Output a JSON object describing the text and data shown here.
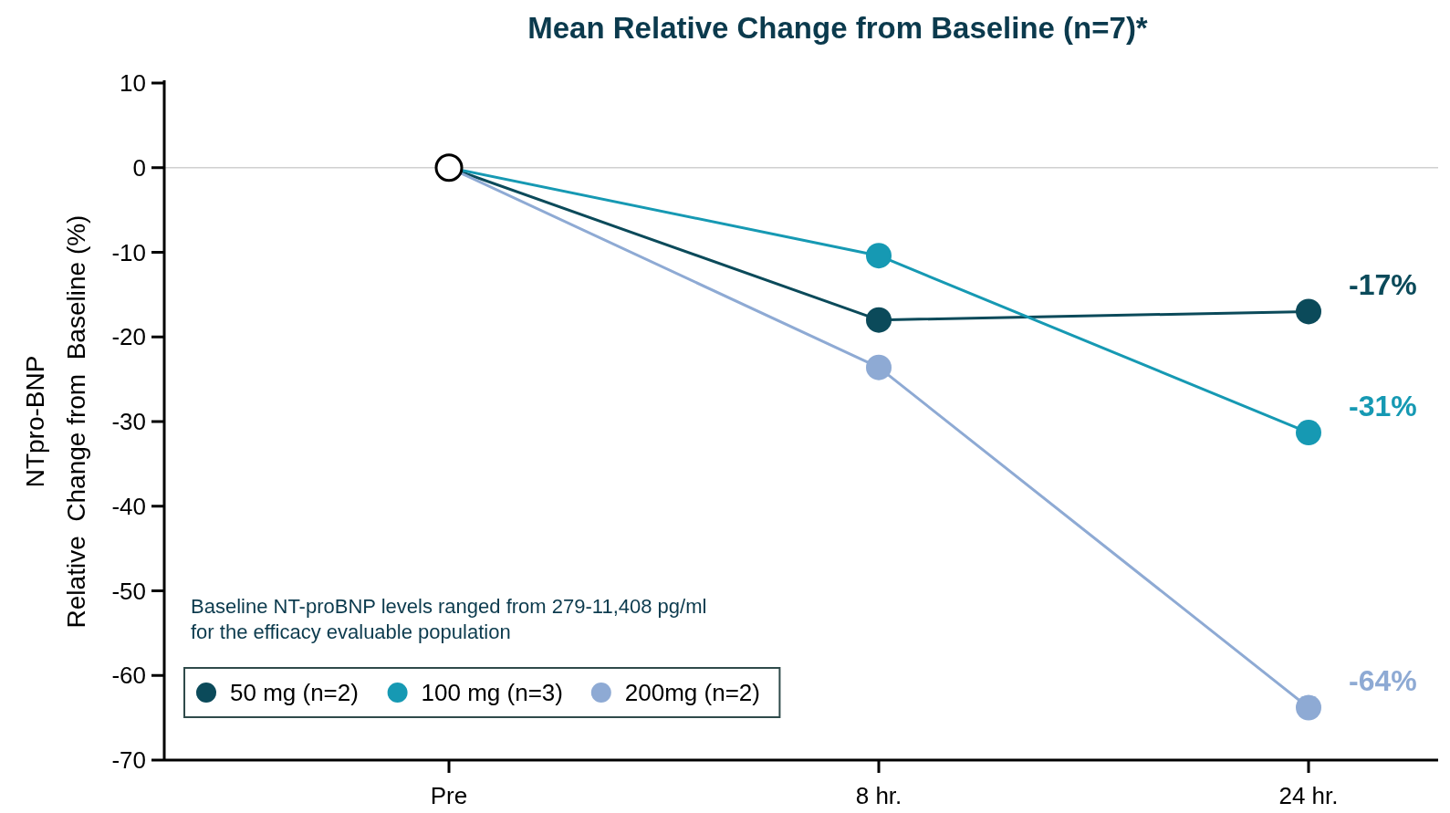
{
  "chart_data": {
    "type": "line",
    "title": "Mean Relative Change from Baseline (n=7)*",
    "ylabel": "NTpro-BNP\nRelative  Change from  Baseline (%)",
    "categories": [
      "Pre",
      "8 hr.",
      "24 hr."
    ],
    "series": [
      {
        "name": "50 mg (n=2)",
        "color": "#0b4a5a",
        "values": [
          0,
          -18,
          -17
        ],
        "value_labels": [
          null,
          null,
          "-17%"
        ]
      },
      {
        "name": "100 mg (n=3)",
        "color": "#1699b3",
        "values": [
          0,
          -10.4,
          -31.3
        ],
        "value_labels": [
          null,
          null,
          "-31%"
        ]
      },
      {
        "name": "200mg (n=2)",
        "color": "#8eaad4",
        "values": [
          0,
          -23.6,
          -63.8
        ],
        "value_labels": [
          null,
          null,
          "-64%"
        ]
      },
      {
        "type": "scatter",
        "color": "#000000",
        "x": [
          "Pre"
        ],
        "values": [
          0
        ]
      }
    ],
    "ylim": [
      -70,
      10
    ],
    "yticks": [
      10,
      0,
      -10,
      -20,
      -30,
      -40,
      -50,
      -60,
      -70
    ],
    "ref_lines": [
      {
        "axis": "y",
        "value": 0,
        "color": "#d0d0d0"
      }
    ],
    "annotations": [
      "Baseline NT-proBNP levels ranged from 279-11,408 pg/ml\nfor the efficacy evaluable population"
    ],
    "legend": "bottom left",
    "marker": "circle",
    "line_style": "solid",
    "grid": false
  }
}
